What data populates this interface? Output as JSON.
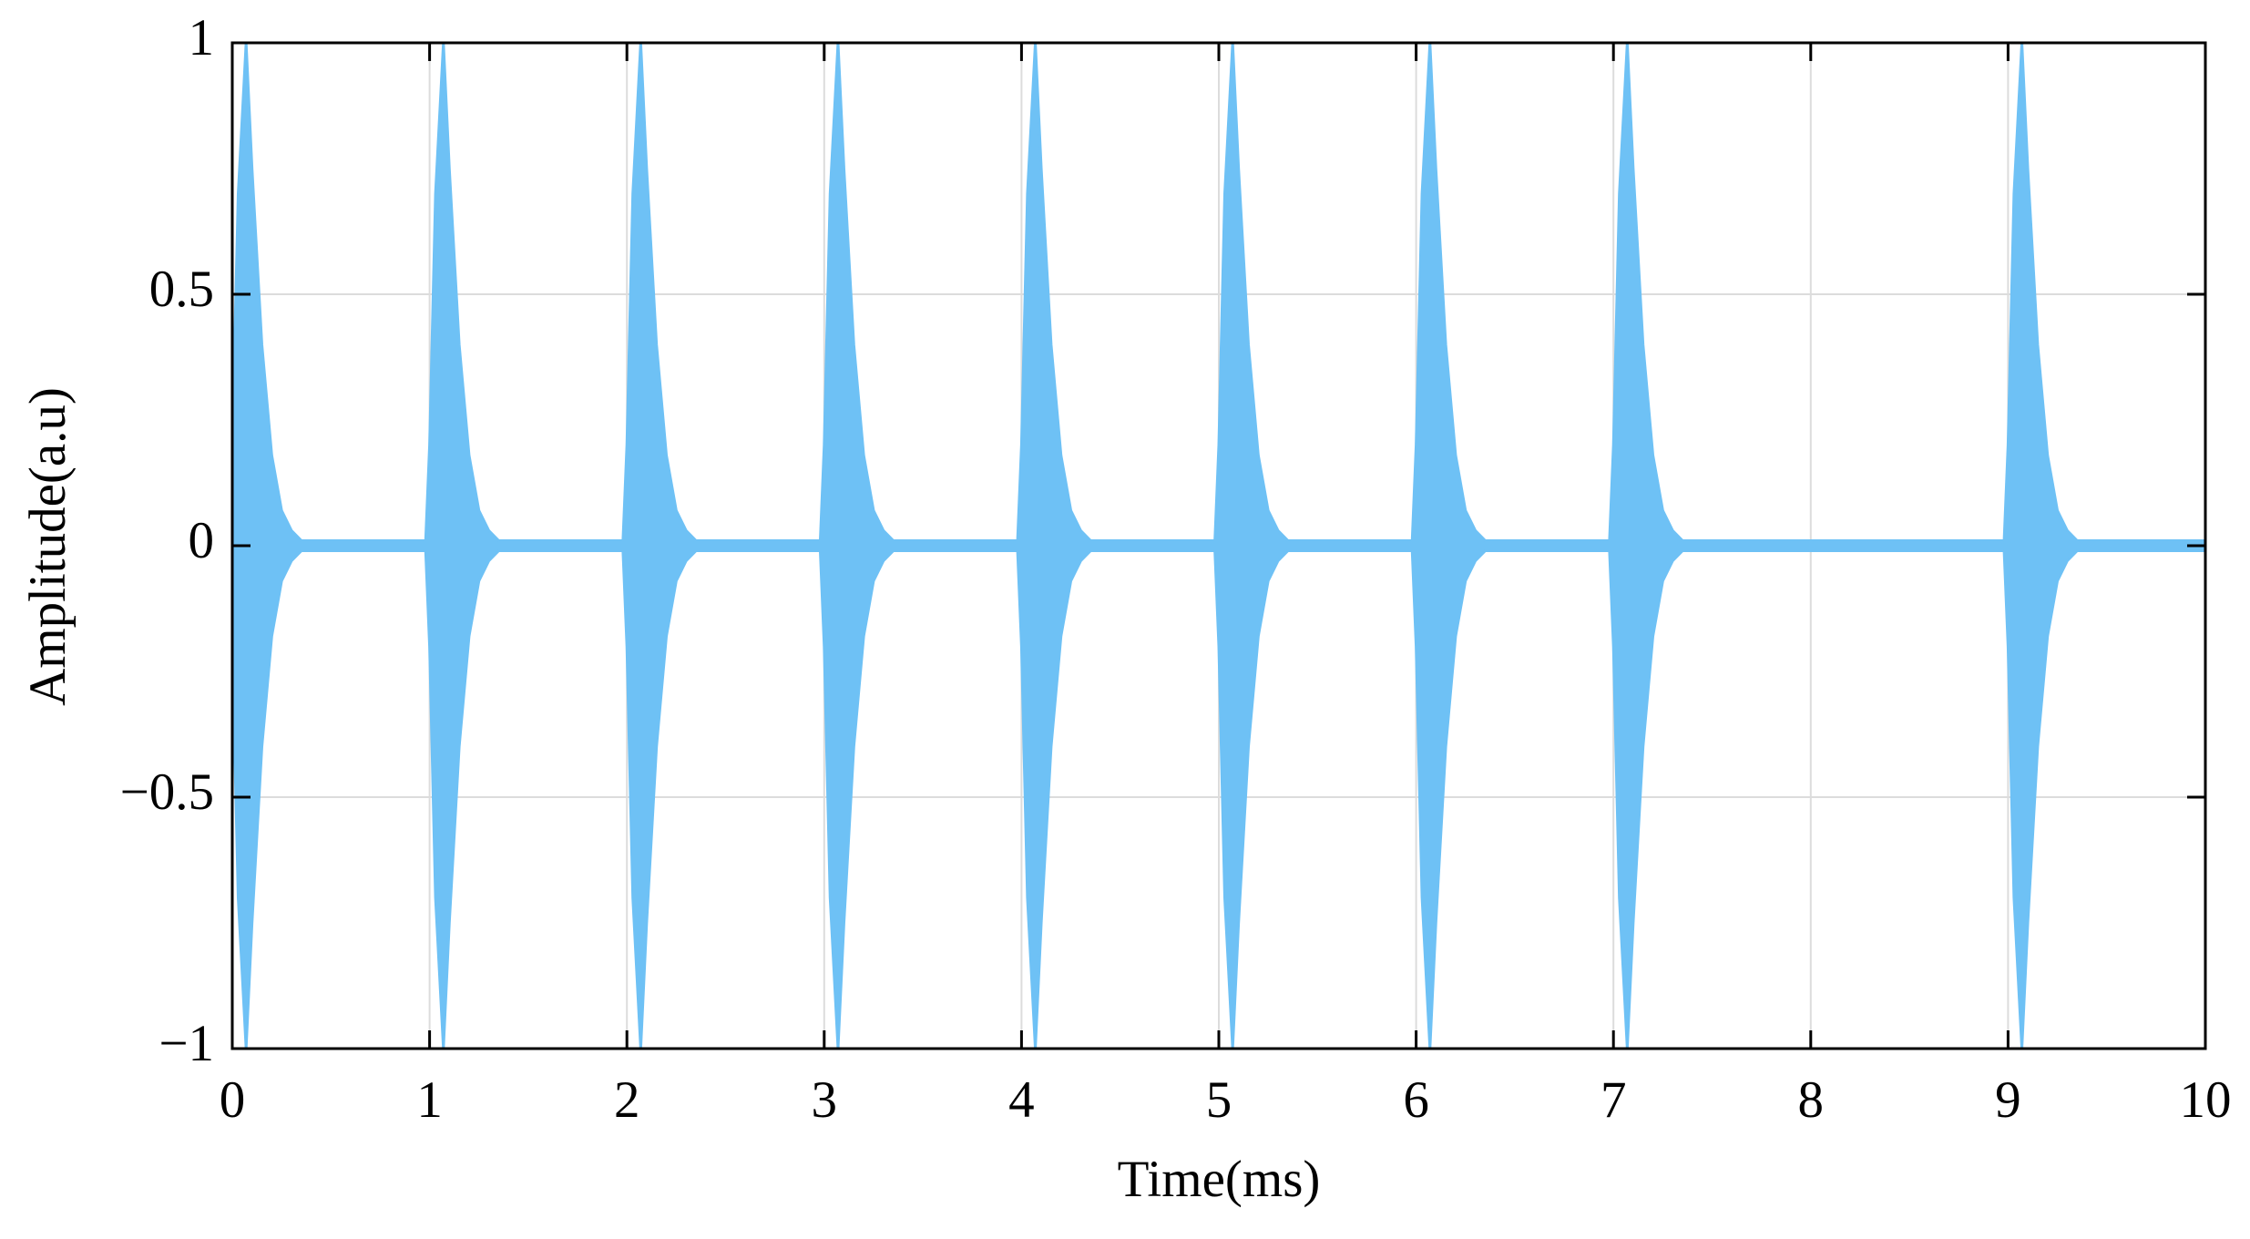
{
  "chart_data": {
    "type": "area",
    "xlabel": "Time(ms)",
    "ylabel": "Amplitude(a.u)",
    "color": "#6ec1f5",
    "grid": true,
    "xlim": [
      0,
      10
    ],
    "xticks": [
      0,
      1,
      2,
      3,
      4,
      5,
      6,
      7,
      8,
      9,
      10
    ],
    "ylim": [
      -1,
      1
    ],
    "yticks": [
      {
        "value": -1,
        "label": "−1"
      },
      {
        "value": -0.5,
        "label": "−0.5"
      },
      0,
      0.5,
      1
    ],
    "x": [
      0,
      0.03,
      0.07,
      0.1,
      0.15,
      0.2,
      0.25,
      0.3,
      0.35,
      0.98,
      1,
      1.03,
      1.07,
      1.1,
      1.15,
      1.2,
      1.25,
      1.3,
      1.35,
      1.98,
      2,
      2.03,
      2.07,
      2.1,
      2.15,
      2.2,
      2.25,
      2.3,
      2.35,
      2.98,
      3,
      3.03,
      3.07,
      3.1,
      3.15,
      3.2,
      3.25,
      3.3,
      3.35,
      3.98,
      4,
      4.03,
      4.07,
      4.1,
      4.15,
      4.2,
      4.25,
      4.3,
      4.35,
      4.98,
      5,
      5.03,
      5.07,
      5.1,
      5.15,
      5.2,
      5.25,
      5.3,
      5.35,
      5.98,
      6,
      6.03,
      6.07,
      6.1,
      6.15,
      6.2,
      6.25,
      6.3,
      6.35,
      6.98,
      7,
      7.03,
      7.07,
      7.1,
      7.15,
      7.2,
      7.25,
      7.3,
      7.35,
      8.98,
      9,
      9.03,
      9.07,
      9.1,
      9.15,
      9.2,
      9.25,
      9.3,
      9.35,
      10
    ],
    "upper": [
      0.2,
      0.7,
      1,
      0.75,
      0.4,
      0.18,
      0.07,
      0.03,
      0.01,
      0.01,
      0.2,
      0.7,
      1,
      0.75,
      0.4,
      0.18,
      0.07,
      0.03,
      0.01,
      0.01,
      0.2,
      0.7,
      1,
      0.75,
      0.4,
      0.18,
      0.07,
      0.03,
      0.01,
      0.01,
      0.2,
      0.7,
      1,
      0.75,
      0.4,
      0.18,
      0.07,
      0.03,
      0.01,
      0.01,
      0.2,
      0.7,
      1,
      0.75,
      0.4,
      0.18,
      0.07,
      0.03,
      0.01,
      0.01,
      0.2,
      0.7,
      1,
      0.75,
      0.4,
      0.18,
      0.07,
      0.03,
      0.01,
      0.01,
      0.2,
      0.7,
      1,
      0.75,
      0.4,
      0.18,
      0.07,
      0.03,
      0.01,
      0.01,
      0.2,
      0.7,
      1,
      0.75,
      0.4,
      0.18,
      0.07,
      0.03,
      0.01,
      0.01,
      0.2,
      0.7,
      1,
      0.75,
      0.4,
      0.18,
      0.07,
      0.03,
      0.01,
      0.01
    ],
    "lower": [
      -0.2,
      -0.7,
      -1,
      -0.75,
      -0.4,
      -0.18,
      -0.07,
      -0.03,
      -0.01,
      -0.01,
      -0.2,
      -0.7,
      -1,
      -0.75,
      -0.4,
      -0.18,
      -0.07,
      -0.03,
      -0.01,
      -0.01,
      -0.2,
      -0.7,
      -1,
      -0.75,
      -0.4,
      -0.18,
      -0.07,
      -0.03,
      -0.01,
      -0.01,
      -0.2,
      -0.7,
      -1,
      -0.75,
      -0.4,
      -0.18,
      -0.07,
      -0.03,
      -0.01,
      -0.01,
      -0.2,
      -0.7,
      -1,
      -0.75,
      -0.4,
      -0.18,
      -0.07,
      -0.03,
      -0.01,
      -0.01,
      -0.2,
      -0.7,
      -1,
      -0.75,
      -0.4,
      -0.18,
      -0.07,
      -0.03,
      -0.01,
      -0.01,
      -0.2,
      -0.7,
      -1,
      -0.75,
      -0.4,
      -0.18,
      -0.07,
      -0.03,
      -0.01,
      -0.01,
      -0.2,
      -0.7,
      -1,
      -0.75,
      -0.4,
      -0.18,
      -0.07,
      -0.03,
      -0.01,
      -0.01,
      -0.2,
      -0.7,
      -1,
      -0.75,
      -0.4,
      -0.18,
      -0.07,
      -0.03,
      -0.01,
      -0.01
    ]
  }
}
